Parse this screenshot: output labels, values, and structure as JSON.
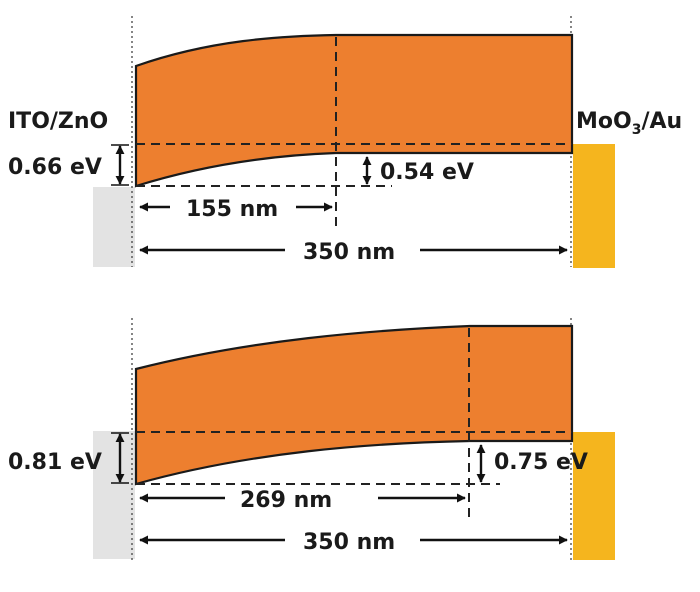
{
  "labels": {
    "left_electrode": "ITO/ZnO",
    "right_electrode_main": "MoO",
    "right_electrode_sub": "3",
    "right_electrode_tail": "/Au"
  },
  "top_panel": {
    "left_bending": "0.66 eV",
    "right_bending": "0.54 eV",
    "depletion_width": "155 nm",
    "total_width": "350 nm"
  },
  "bottom_panel": {
    "left_bending": "0.81 eV",
    "right_bending": "0.75 eV",
    "depletion_width": "269 nm",
    "total_width": "350 nm"
  },
  "colors": {
    "active_layer": "#ED7F2F",
    "ito_zno": "#E3E3E3",
    "moo3_au": "#F5B51E"
  }
}
